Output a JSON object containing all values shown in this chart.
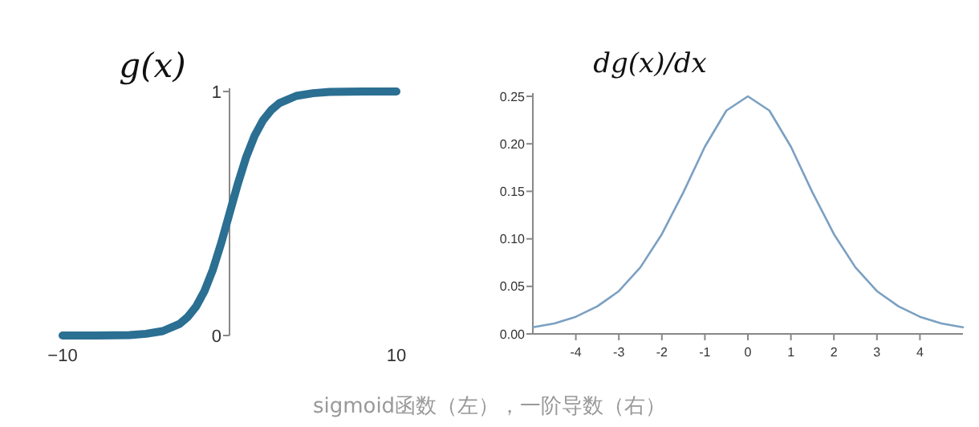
{
  "chart_data": [
    {
      "type": "line",
      "title": "g(x)",
      "color": "#2b6f92",
      "x": [
        -10,
        -8,
        -6,
        -5,
        -4,
        -3,
        -2.5,
        -2,
        -1.5,
        -1,
        -0.5,
        0,
        0.5,
        1,
        1.5,
        2,
        2.5,
        3,
        4,
        5,
        6,
        8,
        10
      ],
      "values": [
        0,
        0,
        0.002,
        0.007,
        0.018,
        0.047,
        0.076,
        0.119,
        0.182,
        0.269,
        0.378,
        0.5,
        0.622,
        0.731,
        0.818,
        0.881,
        0.924,
        0.953,
        0.982,
        0.993,
        0.998,
        1,
        1
      ],
      "xlim": [
        -10,
        10
      ],
      "ylim": [
        0,
        1
      ],
      "xticks": [
        {
          "value": -10,
          "label": "−10"
        },
        10
      ],
      "yticks": [
        0,
        1
      ],
      "annotations": [
        "sigmoid函数（左），一阶导数（右）"
      ]
    },
    {
      "type": "line",
      "title": "dg(x)/dx",
      "color": "#7ba0c2",
      "x": [
        -5,
        -4.5,
        -4,
        -3.5,
        -3,
        -2.5,
        -2,
        -1.5,
        -1,
        -0.5,
        0,
        0.5,
        1,
        1.5,
        2,
        2.5,
        3,
        3.5,
        4,
        4.5,
        5
      ],
      "values": [
        0.007,
        0.011,
        0.018,
        0.029,
        0.045,
        0.07,
        0.105,
        0.149,
        0.197,
        0.235,
        0.25,
        0.235,
        0.197,
        0.149,
        0.105,
        0.07,
        0.045,
        0.029,
        0.018,
        0.011,
        0.007
      ],
      "xlim": [
        -5,
        5
      ],
      "ylim": [
        0,
        0.25
      ],
      "xticks": [
        -4,
        -3,
        -2,
        -1,
        0,
        1,
        2,
        3,
        4
      ],
      "yticks": [
        {
          "value": 0,
          "label": "0.00"
        },
        {
          "value": 0.05,
          "label": "0.05"
        },
        {
          "value": 0.1,
          "label": "0.10"
        },
        {
          "value": 0.15,
          "label": "0.15"
        },
        {
          "value": 0.2,
          "label": "0.20"
        },
        {
          "value": 0.25,
          "label": "0.25"
        }
      ]
    }
  ]
}
